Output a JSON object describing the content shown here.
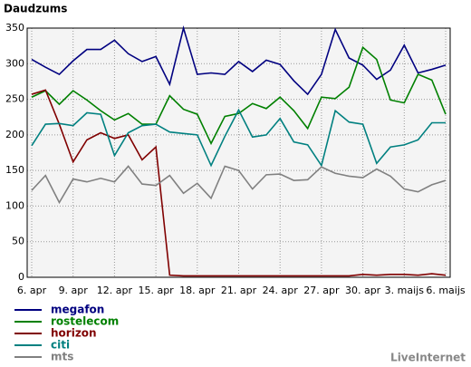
{
  "chart_data": {
    "type": "line",
    "title": "Daudzums",
    "watermark": "LiveInternet",
    "categories": [
      "6. apr",
      null,
      null,
      "9. apr",
      null,
      null,
      "12. apr",
      null,
      null,
      "15. apr",
      null,
      null,
      "18. apr",
      null,
      null,
      "21. apr",
      null,
      null,
      "24. apr",
      null,
      null,
      "27. apr",
      null,
      null,
      "30. apr",
      null,
      null,
      "3. maijs",
      null,
      null,
      "6. maijs"
    ],
    "ylim": [
      0,
      350
    ],
    "yticks": [
      0,
      50,
      100,
      150,
      200,
      250,
      300,
      350
    ],
    "grid": true,
    "series": [
      {
        "name": "megafon",
        "color": "#000080",
        "values": [
          306,
          295,
          285,
          304,
          320,
          320,
          333,
          314,
          303,
          310,
          271,
          350,
          285,
          287,
          285,
          303,
          289,
          305,
          299,
          276,
          257,
          285,
          348,
          308,
          298,
          278,
          291,
          326,
          287,
          292,
          298
        ]
      },
      {
        "name": "rostelecom",
        "color": "#008000",
        "values": [
          253,
          262,
          243,
          262,
          249,
          234,
          221,
          230,
          215,
          215,
          255,
          236,
          229,
          188,
          226,
          230,
          244,
          237,
          253,
          234,
          209,
          253,
          251,
          267,
          323,
          306,
          249,
          245,
          285,
          277,
          229
        ]
      },
      {
        "name": "horizon",
        "color": "#800000",
        "values": [
          257,
          263,
          215,
          162,
          193,
          203,
          195,
          200,
          165,
          183,
          3,
          2,
          2,
          2,
          2,
          2,
          2,
          2,
          2,
          2,
          2,
          2,
          2,
          2,
          4,
          3,
          4,
          4,
          3,
          5,
          3
        ]
      },
      {
        "name": "citi",
        "color": "#008080",
        "values": [
          185,
          215,
          216,
          213,
          231,
          229,
          171,
          203,
          213,
          215,
          204,
          202,
          200,
          157,
          198,
          235,
          197,
          200,
          223,
          190,
          186,
          157,
          234,
          218,
          215,
          160,
          183,
          186,
          193,
          217,
          217
        ]
      },
      {
        "name": "mts",
        "color": "#808080",
        "values": [
          122,
          143,
          105,
          138,
          134,
          139,
          134,
          156,
          131,
          129,
          143,
          118,
          132,
          111,
          156,
          150,
          124,
          144,
          145,
          136,
          137,
          155,
          146,
          142,
          140,
          152,
          142,
          124,
          120,
          130,
          136
        ]
      }
    ]
  }
}
